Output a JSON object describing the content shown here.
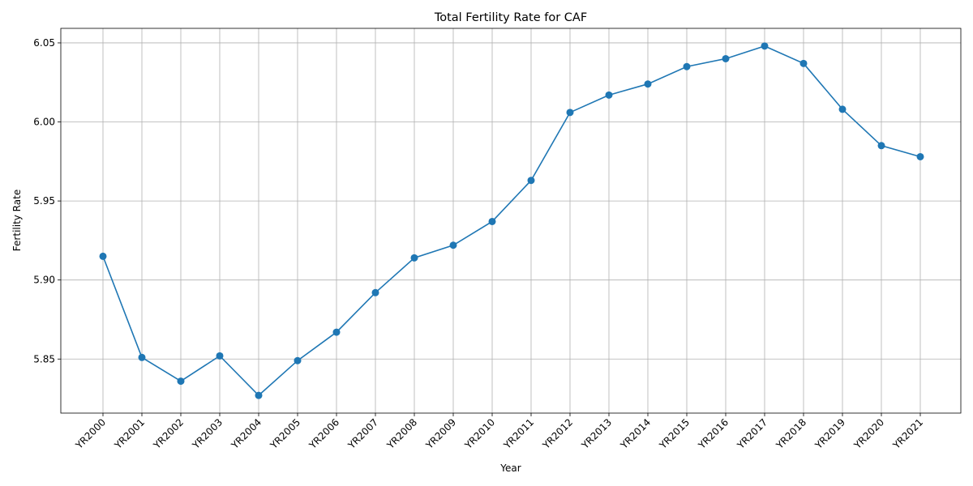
{
  "chart_data": {
    "type": "line",
    "title": "Total Fertility Rate for CAF",
    "xlabel": "Year",
    "ylabel": "Fertility Rate",
    "categories": [
      "YR2000",
      "YR2001",
      "YR2002",
      "YR2003",
      "YR2004",
      "YR2005",
      "YR2006",
      "YR2007",
      "YR2008",
      "YR2009",
      "YR2010",
      "YR2011",
      "YR2012",
      "YR2013",
      "YR2014",
      "YR2015",
      "YR2016",
      "YR2017",
      "YR2018",
      "YR2019",
      "YR2020",
      "YR2021"
    ],
    "series": [
      {
        "values": [
          5.915,
          5.851,
          5.836,
          5.852,
          5.827,
          5.849,
          5.867,
          5.892,
          5.914,
          5.922,
          5.937,
          5.963,
          6.006,
          6.017,
          6.024,
          6.035,
          6.04,
          6.048,
          6.037,
          6.008,
          5.985,
          5.978
        ],
        "color": "#1f77b4",
        "marker": "circle"
      }
    ],
    "yticks": [
      "5.85",
      "5.90",
      "5.95",
      "6.00",
      "6.05"
    ],
    "ylim": [
      5.8158,
      6.0592
    ],
    "grid": true,
    "legend": "none"
  }
}
